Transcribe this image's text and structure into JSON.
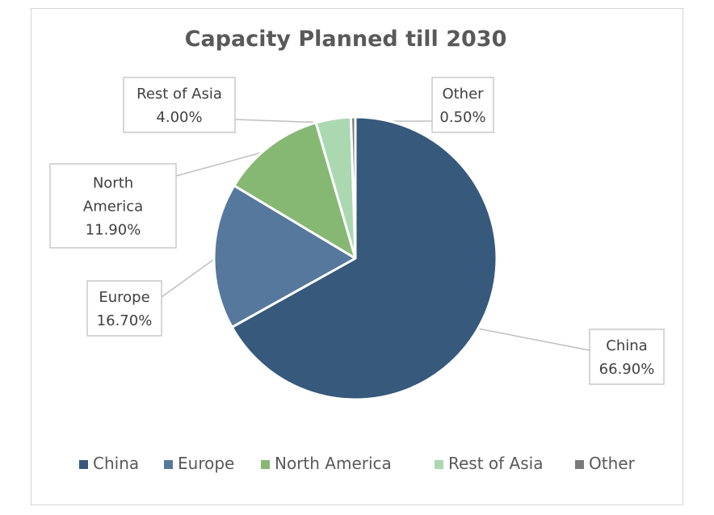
{
  "chart_data": {
    "type": "pie",
    "title": "Capacity Planned till 2030",
    "categories": [
      "China",
      "Europe",
      "North America",
      "Rest of Asia",
      "Other"
    ],
    "values": [
      66.9,
      16.7,
      11.9,
      4.0,
      0.5
    ],
    "value_labels": [
      "66.90%",
      "16.70%",
      "11.90%",
      "4.00%",
      "0.50%"
    ],
    "label_lines": [
      [
        "China"
      ],
      [
        "Europe"
      ],
      [
        "North",
        "America"
      ],
      [
        "Rest of Asia"
      ],
      [
        "Other"
      ]
    ],
    "colors": [
      "#36597c",
      "#56789c",
      "#86b874",
      "#abd8b1",
      "#7a7a7a"
    ],
    "legend_position": "bottom"
  }
}
